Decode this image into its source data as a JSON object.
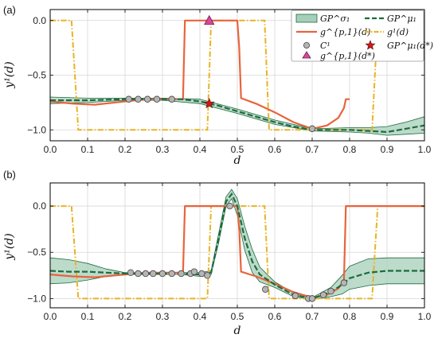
{
  "chart_data": [
    {
      "type": "line",
      "panel_label": "(a)",
      "xlabel": "d",
      "ylabel": "y¹(d)",
      "xlim": [
        0.0,
        1.0
      ],
      "ylim": [
        -1.1,
        0.1
      ],
      "x_ticks": [
        "0.0",
        "0.1",
        "0.2",
        "0.3",
        "0.4",
        "0.5",
        "0.6",
        "0.7",
        "0.8",
        "0.9",
        "1.0"
      ],
      "x_tick_values": [
        0.0,
        0.1,
        0.2,
        0.3,
        0.4,
        0.5,
        0.6,
        0.7,
        0.8,
        0.9,
        1.0
      ],
      "y_ticks": [
        "0.0",
        "−0.5",
        "−1.0"
      ],
      "y_tick_values": [
        0.0,
        -0.5,
        -1.0
      ],
      "grid": true,
      "legend": {
        "placement": "top-right",
        "entries": [
          {
            "label": "GP^σ₁",
            "style": "band"
          },
          {
            "label": "GP^μ₁",
            "style": "dashed"
          },
          {
            "label": "g^{p,1}(d)",
            "style": "solid-orange"
          },
          {
            "label": "g¹(d)",
            "style": "dashdot-yellow"
          },
          {
            "label": "C¹",
            "style": "circle"
          },
          {
            "label": "g^{p,1}(d*)",
            "style": "triangle"
          },
          {
            "label": "GP^μ₁(d*)",
            "style": "star"
          }
        ]
      },
      "series": [
        {
          "id": "g1",
          "x": [
            0.0,
            0.057,
            0.075,
            0.42,
            0.43,
            0.573,
            0.585,
            0.86,
            0.875,
            1.0
          ],
          "values": [
            0.0,
            0.0,
            -1.0,
            -1.0,
            0.0,
            0.0,
            -1.0,
            -1.0,
            0.0,
            0.0
          ]
        },
        {
          "id": "gp1",
          "x": [
            0.0,
            0.06,
            0.12,
            0.2,
            0.26,
            0.3,
            0.345,
            0.355,
            0.36,
            0.5,
            0.505,
            0.51,
            0.55,
            0.6,
            0.65,
            0.7,
            0.74,
            0.77,
            0.785,
            0.79,
            0.8
          ],
          "values": [
            -0.74,
            -0.76,
            -0.77,
            -0.74,
            -0.72,
            -0.72,
            -0.72,
            -0.72,
            0.0,
            0.0,
            -0.25,
            -0.71,
            -0.76,
            -0.84,
            -0.93,
            -0.99,
            -0.96,
            -0.89,
            -0.8,
            -0.72,
            -0.72
          ]
        },
        {
          "id": "gpmu",
          "x": [
            0.0,
            0.1,
            0.2,
            0.3,
            0.35,
            0.4,
            0.45,
            0.5,
            0.55,
            0.6,
            0.65,
            0.7,
            0.75,
            0.8,
            0.85,
            0.9,
            0.95,
            1.0
          ],
          "values": [
            -0.73,
            -0.73,
            -0.72,
            -0.72,
            -0.72,
            -0.74,
            -0.78,
            -0.83,
            -0.88,
            -0.93,
            -0.97,
            -1.0,
            -1.0,
            -1.0,
            -1.01,
            -1.02,
            -0.99,
            -0.96
          ]
        },
        {
          "id": "band_upper",
          "x": [
            0.0,
            0.1,
            0.2,
            0.3,
            0.4,
            0.5,
            0.6,
            0.7,
            0.8,
            0.85,
            0.9,
            0.95,
            1.0
          ],
          "values": [
            -0.7,
            -0.71,
            -0.71,
            -0.71,
            -0.72,
            -0.81,
            -0.91,
            -0.99,
            -0.98,
            -0.98,
            -0.97,
            -0.93,
            -0.88
          ]
        },
        {
          "id": "band_lower",
          "x": [
            0.0,
            0.1,
            0.2,
            0.3,
            0.4,
            0.5,
            0.6,
            0.7,
            0.8,
            0.85,
            0.9,
            0.95,
            1.0
          ],
          "values": [
            -0.76,
            -0.75,
            -0.73,
            -0.73,
            -0.76,
            -0.85,
            -0.95,
            -1.01,
            -1.02,
            -1.03,
            -1.05,
            -1.04,
            -1.03
          ]
        }
      ],
      "points_C1": {
        "x": [
          0.21,
          0.235,
          0.26,
          0.285,
          0.325,
          0.7
        ],
        "values": [
          -0.72,
          -0.72,
          -0.72,
          -0.72,
          -0.72,
          -0.99
        ]
      },
      "triangle": {
        "x": 0.425,
        "value": 0.0
      },
      "star": {
        "x": 0.425,
        "value": -0.76
      }
    },
    {
      "type": "line",
      "panel_label": "(b)",
      "xlabel": "d",
      "ylabel": "y¹(d)",
      "xlim": [
        0.0,
        1.0
      ],
      "ylim": [
        -1.1,
        0.25
      ],
      "x_ticks": [
        "0.0",
        "0.1",
        "0.2",
        "0.3",
        "0.4",
        "0.5",
        "0.6",
        "0.7",
        "0.8",
        "0.9",
        "1.0"
      ],
      "x_tick_values": [
        0.0,
        0.1,
        0.2,
        0.3,
        0.4,
        0.5,
        0.6,
        0.7,
        0.8,
        0.9,
        1.0
      ],
      "y_ticks": [
        "0.0",
        "−0.5",
        "−1.0"
      ],
      "y_tick_values": [
        0.0,
        -0.5,
        -1.0
      ],
      "grid": true,
      "series": [
        {
          "id": "g1",
          "x": [
            0.0,
            0.057,
            0.075,
            0.42,
            0.43,
            0.573,
            0.585,
            0.86,
            0.875,
            1.0
          ],
          "values": [
            0.0,
            0.0,
            -1.0,
            -1.0,
            0.0,
            0.0,
            -1.0,
            -1.0,
            0.0,
            0.0
          ]
        },
        {
          "id": "gp1",
          "x": [
            0.0,
            0.06,
            0.12,
            0.2,
            0.26,
            0.3,
            0.345,
            0.355,
            0.36,
            0.5,
            0.505,
            0.51,
            0.55,
            0.6,
            0.65,
            0.7,
            0.74,
            0.77,
            0.785,
            0.79,
            1.0
          ],
          "values": [
            -0.74,
            -0.76,
            -0.77,
            -0.74,
            -0.72,
            -0.72,
            -0.72,
            -0.72,
            0.0,
            0.0,
            -0.25,
            -0.71,
            -0.76,
            -0.84,
            -0.93,
            -0.99,
            -0.96,
            -0.89,
            -0.8,
            0.0,
            0.0
          ]
        },
        {
          "id": "gpmu",
          "x": [
            0.0,
            0.05,
            0.1,
            0.15,
            0.2,
            0.25,
            0.3,
            0.35,
            0.4,
            0.43,
            0.45,
            0.47,
            0.485,
            0.5,
            0.52,
            0.54,
            0.56,
            0.6,
            0.65,
            0.7,
            0.75,
            0.78,
            0.8,
            0.85,
            0.9,
            1.0
          ],
          "values": [
            -0.7,
            -0.71,
            -0.71,
            -0.72,
            -0.73,
            -0.73,
            -0.73,
            -0.73,
            -0.74,
            -0.72,
            -0.35,
            0.05,
            0.13,
            0.0,
            -0.35,
            -0.6,
            -0.74,
            -0.85,
            -0.96,
            -1.0,
            -0.93,
            -0.85,
            -0.78,
            -0.72,
            -0.7,
            -0.7
          ]
        },
        {
          "id": "band_upper",
          "x": [
            0.0,
            0.05,
            0.1,
            0.15,
            0.2,
            0.25,
            0.3,
            0.35,
            0.4,
            0.43,
            0.45,
            0.47,
            0.485,
            0.5,
            0.52,
            0.54,
            0.56,
            0.6,
            0.65,
            0.7,
            0.75,
            0.78,
            0.8,
            0.85,
            0.9,
            1.0
          ],
          "values": [
            -0.56,
            -0.58,
            -0.62,
            -0.68,
            -0.72,
            -0.72,
            -0.72,
            -0.72,
            -0.72,
            -0.7,
            -0.3,
            0.1,
            0.18,
            0.08,
            -0.22,
            -0.47,
            -0.66,
            -0.82,
            -0.94,
            -0.99,
            -0.88,
            -0.75,
            -0.65,
            -0.57,
            -0.56,
            -0.56
          ]
        },
        {
          "id": "band_lower",
          "x": [
            0.0,
            0.05,
            0.1,
            0.15,
            0.2,
            0.25,
            0.3,
            0.35,
            0.4,
            0.43,
            0.45,
            0.47,
            0.485,
            0.5,
            0.52,
            0.54,
            0.56,
            0.6,
            0.65,
            0.7,
            0.75,
            0.78,
            0.8,
            0.85,
            0.9,
            1.0
          ],
          "values": [
            -0.84,
            -0.83,
            -0.8,
            -0.76,
            -0.74,
            -0.74,
            -0.74,
            -0.74,
            -0.76,
            -0.74,
            -0.4,
            0.0,
            0.08,
            -0.1,
            -0.48,
            -0.72,
            -0.82,
            -0.88,
            -0.98,
            -1.01,
            -0.98,
            -0.95,
            -0.9,
            -0.86,
            -0.84,
            -0.84
          ]
        }
      ],
      "points_C1": {
        "x": [
          0.215,
          0.235,
          0.255,
          0.275,
          0.3,
          0.325,
          0.35,
          0.375,
          0.385,
          0.405,
          0.42,
          0.48,
          0.575,
          0.655,
          0.69,
          0.7,
          0.73,
          0.75,
          0.785
        ],
        "values": [
          -0.72,
          -0.73,
          -0.73,
          -0.73,
          -0.73,
          -0.73,
          -0.73,
          -0.73,
          -0.71,
          -0.73,
          -0.75,
          0.0,
          -0.9,
          -0.97,
          -1.0,
          -1.0,
          -0.96,
          -0.92,
          -0.83
        ]
      }
    }
  ],
  "colors": {
    "orange": "#e8643c",
    "yellow": "#e8b423",
    "green_dark": "#1e6b3e",
    "band_fill": "#a6cfb9",
    "marker_grey": "#b5b5b5",
    "triangle": "#d9489c",
    "star": "#cc1a1a",
    "grid": "#d7d7d7"
  }
}
